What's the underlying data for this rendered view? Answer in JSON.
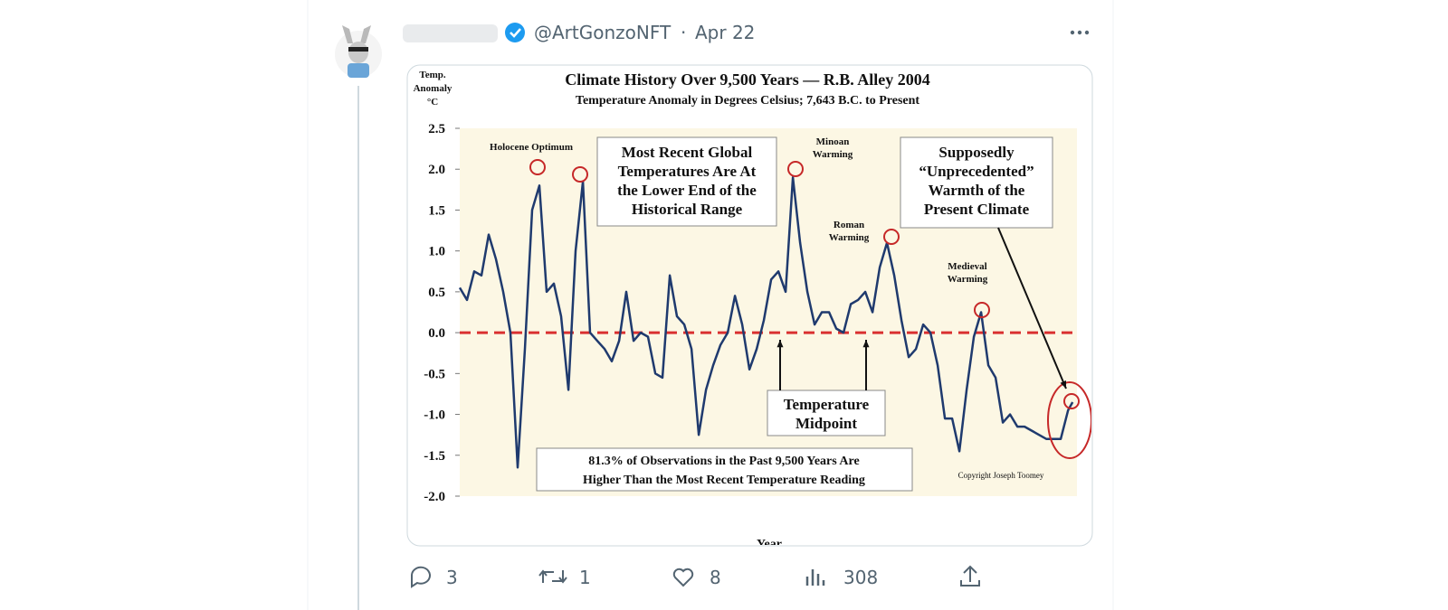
{
  "tweet": {
    "handle": "@ArtGonzoNFT",
    "separator": "·",
    "date": "Apr 22",
    "stats": {
      "replies": 3,
      "retweets": 1,
      "likes": 8,
      "views": 308
    }
  },
  "chart_data": {
    "type": "line",
    "title": "Climate History Over 9,500 Years — R.B. Alley 2004",
    "subtitle": "Temperature Anomaly in Degrees Celsius; 7,643 B.C. to Present",
    "ylabel": [
      "Temp.",
      "Anomaly",
      "°C"
    ],
    "xlabel": "Year",
    "color": "#1f3a6e",
    "ylim": [
      -2,
      2.5
    ],
    "yticks": [
      2.5,
      {
        "value": 2,
        "label": "2.0"
      },
      1.5,
      {
        "value": 1,
        "label": "1.0"
      },
      0.5,
      {
        "value": 0,
        "label": "0.0"
      },
      -0.5,
      {
        "value": -1,
        "label": "-1.0"
      },
      -1.5,
      {
        "value": -2,
        "label": "-2.0"
      }
    ],
    "xlim": [
      -7643,
      1855
    ],
    "x": [
      -7643,
      -7532,
      -7420,
      -7309,
      -7197,
      -7086,
      -6975,
      -6863,
      -6752,
      -6640,
      -6529,
      -6417,
      -6306,
      -6194,
      -6083,
      -5971,
      -5860,
      -5748,
      -5637,
      -5526,
      -5414,
      -5303,
      -5191,
      -5080,
      -4968,
      -4857,
      -4746,
      -4634,
      -4523,
      -4411,
      -4300,
      -4188,
      -4077,
      -3965,
      -3854,
      -3743,
      -3631,
      -3520,
      -3408,
      -3297,
      -3185,
      -3074,
      -2963,
      -2851,
      -2740,
      -2628,
      -2517,
      -2405,
      -2294,
      -2182,
      -2071,
      -1960,
      -1848,
      -1737,
      -1625,
      -1514,
      -1402,
      -1291,
      -1180,
      -1068,
      -957,
      -845,
      -734,
      -622,
      -511,
      -400,
      -288,
      -177,
      -65,
      46,
      158,
      269,
      380,
      492,
      603,
      715,
      826,
      938,
      1049,
      1160,
      1272,
      1383,
      1495,
      1606,
      1718,
      1788
    ],
    "values": [
      0.55,
      0.4,
      0.75,
      0.7,
      1.2,
      0.9,
      0.5,
      0.0,
      -1.65,
      -0.2,
      1.5,
      1.8,
      0.5,
      0.6,
      0.2,
      -0.7,
      1.0,
      1.85,
      0.0,
      -0.1,
      -0.2,
      -0.35,
      -0.1,
      0.5,
      -0.1,
      0.0,
      -0.05,
      -0.5,
      -0.55,
      0.7,
      0.2,
      0.1,
      -0.2,
      -1.25,
      -0.7,
      -0.4,
      -0.15,
      0.0,
      0.45,
      0.1,
      -0.45,
      -0.2,
      0.15,
      0.65,
      0.75,
      0.5,
      1.9,
      1.1,
      0.5,
      0.1,
      0.25,
      0.25,
      0.05,
      0.0,
      0.35,
      0.4,
      0.5,
      0.25,
      0.8,
      1.1,
      0.7,
      0.15,
      -0.3,
      -0.2,
      0.1,
      0.0,
      -0.4,
      -1.05,
      -1.05,
      -1.45,
      -0.7,
      -0.05,
      0.25,
      -0.4,
      -0.55,
      -1.1,
      -1.0,
      -1.15,
      -1.15,
      -1.2,
      -1.25,
      -1.3,
      -1.3,
      -1.3,
      -0.95,
      -0.85
    ],
    "annotations": {
      "holocene": [
        "Holocene Optimum"
      ],
      "lower_end": [
        "Most Recent Global",
        "Temperatures Are At",
        "the Lower End of the",
        "Historical Range"
      ],
      "minoan": [
        "Minoan",
        "Warming"
      ],
      "roman": [
        "Roman",
        "Warming"
      ],
      "unprecedented": [
        "Supposedly",
        "“Unprecedented”",
        "Warmth of the",
        "Present Climate"
      ],
      "medieval": [
        "Medieval",
        "Warming"
      ],
      "midpoint": [
        "Temperature",
        "Midpoint"
      ],
      "observations": [
        "81.3% of Observations in the Past 9,500 Years Are",
        "Higher Than the Most Recent Temperature Reading"
      ],
      "copyright": [
        "Copyright Joseph Toomey"
      ]
    }
  }
}
